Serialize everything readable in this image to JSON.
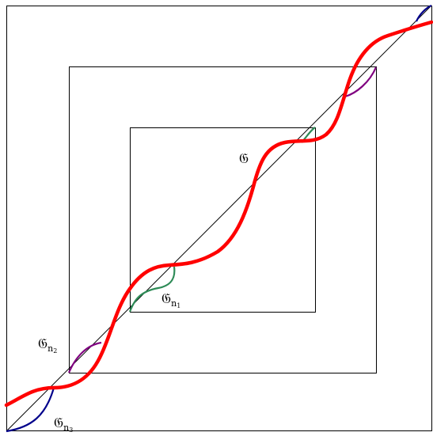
{
  "colors": {
    "background": "#ffffff",
    "frame": "#000000",
    "diagonal": "#000000",
    "g_curve": "#ff0000",
    "g_n1_curve": "#2e8b57",
    "g_n2_curve": "#800080",
    "g_n3_curve": "#00008b"
  },
  "labels": {
    "g": {
      "base": "𝔊",
      "sub": "",
      "subsub": ""
    },
    "g_n1": {
      "base": "𝔊",
      "sub": "n",
      "subsub": "1"
    },
    "g_n2": {
      "base": "𝔊",
      "sub": "n",
      "subsub": "2"
    },
    "g_n3": {
      "base": "𝔊",
      "sub": "n",
      "subsub": "3"
    }
  }
}
